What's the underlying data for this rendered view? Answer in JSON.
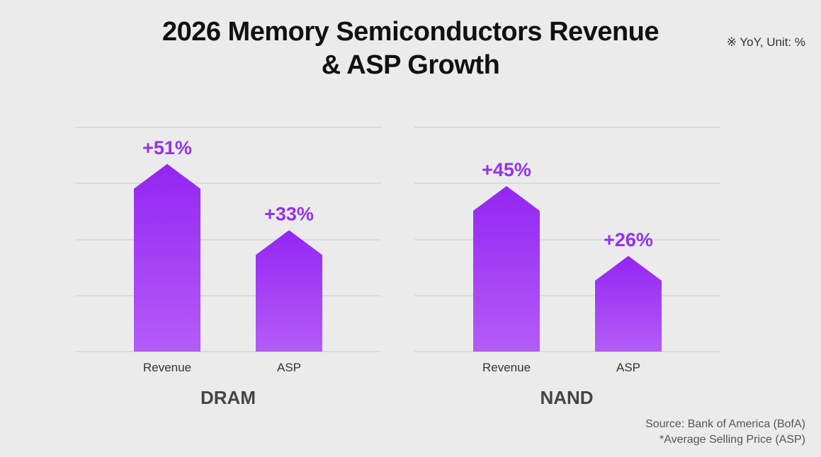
{
  "title_line1": "2026 Memory Semiconductors Revenue",
  "title_line2": "& ASP Growth",
  "unit_note": "※ YoY, Unit: %",
  "source": "Source: Bank of America (BofA)",
  "footnote": "*Average Selling Price (ASP)",
  "colors": {
    "bar_top": "#9326f2",
    "bar_bottom": "#b45cf7",
    "label": "#9333ea",
    "grid": "#cfcfcf",
    "background": "#ebebeb"
  },
  "chart_data": [
    {
      "type": "bar",
      "group": "DRAM",
      "categories": [
        "Revenue",
        "ASP"
      ],
      "values": [
        51,
        33
      ],
      "labels": [
        "+51%",
        "+33%"
      ],
      "unit": "%"
    },
    {
      "type": "bar",
      "group": "NAND",
      "categories": [
        "Revenue",
        "ASP"
      ],
      "values": [
        45,
        26
      ],
      "labels": [
        "+45%",
        "+26%"
      ],
      "unit": "%"
    }
  ]
}
